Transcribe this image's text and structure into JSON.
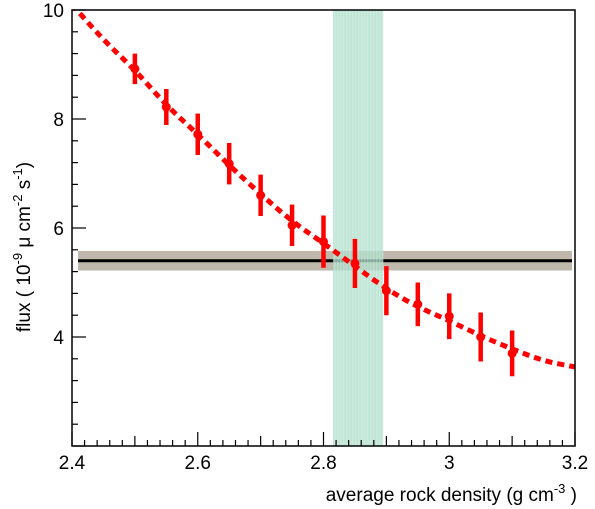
{
  "chart_data": {
    "type": "scatter",
    "xlabel_parts": [
      "average rock density (g cm",
      "-3",
      " )"
    ],
    "ylabel_parts": [
      "flux ( 10",
      "-9",
      " μ cm",
      "-2",
      " s",
      "-1",
      ")"
    ],
    "xlim": [
      2.4,
      3.2
    ],
    "ylim": [
      2.0,
      10.0
    ],
    "x_ticks": [
      2.4,
      2.6,
      2.8,
      3.0,
      3.2
    ],
    "x_tick_labels": [
      "2.4",
      "2.6",
      "2.8",
      "3",
      "3.2"
    ],
    "y_ticks": [
      4,
      6,
      8,
      10
    ],
    "y_tick_labels": [
      "4",
      "6",
      "8",
      "10"
    ],
    "grid": false,
    "series": [
      {
        "kind": "points_with_errors",
        "color": "#ff0000",
        "x": [
          2.5,
          2.55,
          2.6,
          2.65,
          2.7,
          2.75,
          2.8,
          2.85,
          2.9,
          2.95,
          3.0,
          3.05,
          3.1
        ],
        "y": [
          8.92,
          8.22,
          7.72,
          7.18,
          6.6,
          6.05,
          5.75,
          5.35,
          4.85,
          4.6,
          4.38,
          4.0,
          3.7
        ],
        "yerr": [
          0.28,
          0.33,
          0.38,
          0.38,
          0.38,
          0.38,
          0.48,
          0.45,
          0.45,
          0.4,
          0.42,
          0.45,
          0.42
        ]
      },
      {
        "kind": "fit_curve",
        "style": "dashed",
        "color": "#ff0000",
        "x": [
          2.4,
          2.45,
          2.5,
          2.55,
          2.6,
          2.65,
          2.7,
          2.75,
          2.8,
          2.85,
          2.9,
          2.95,
          3.0,
          3.05,
          3.1,
          3.15,
          3.2
        ],
        "y": [
          10.1,
          9.45,
          8.9,
          8.25,
          7.72,
          7.15,
          6.62,
          6.12,
          5.72,
          5.3,
          4.88,
          4.55,
          4.3,
          4.02,
          3.78,
          3.56,
          3.45
        ]
      }
    ],
    "bands": [
      {
        "kind": "horizontal",
        "y_center": 5.4,
        "y_low": 5.22,
        "y_high": 5.58,
        "x_from": 2.4,
        "x_to": 3.2,
        "fill": "#b8b0a4",
        "line": "#000000"
      },
      {
        "kind": "vertical",
        "x_low": 2.815,
        "x_high": 2.895,
        "fill": "#a8dcc8"
      }
    ]
  }
}
